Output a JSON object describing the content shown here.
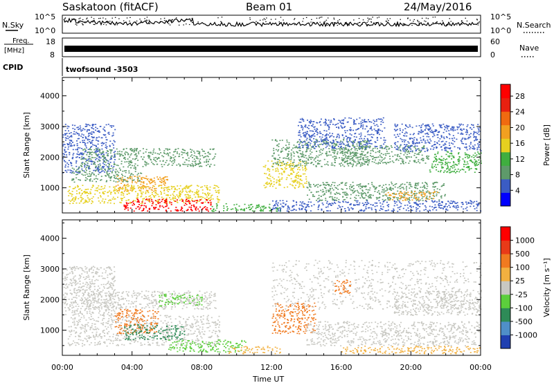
{
  "header": {
    "station": "Saskatoon (fitACF)",
    "beam": "Beam 01",
    "date": "24/May/2016"
  },
  "strips": {
    "nsky_label": "N.Sky",
    "nsearch_label": "N.Search",
    "noise_ticks": [
      "10^5",
      "10^0"
    ],
    "freq_label": "Freq.",
    "freq_unit": "[MHz]",
    "freq_ticks": [
      "18",
      "8"
    ],
    "nave_label": "Nave",
    "nave_ticks": [
      "60",
      "0"
    ],
    "cpid_label": "CPID",
    "cpid_value": "twofsound -3503"
  },
  "chart_data": [
    {
      "type": "heatmap",
      "name": "power",
      "ylabel": "Slant Range [km]",
      "xlabel": "",
      "x_ticks": [
        "00:00",
        "04:00",
        "08:00",
        "12:00",
        "16:00",
        "20:00",
        "00:00"
      ],
      "x_range_hours": [
        0,
        24
      ],
      "y_range": [
        180,
        4600
      ],
      "y_ticks": [
        1000,
        2000,
        3000,
        4000
      ],
      "colorbar": {
        "label": "Power [dB]",
        "ticks": [
          4,
          8,
          12,
          16,
          20,
          24,
          28
        ],
        "range": [
          0,
          31
        ],
        "colors": [
          "#0000ff",
          "#3b5cc4",
          "#5e9a6a",
          "#3fae3f",
          "#e6d020",
          "#f2a020",
          "#f06a10",
          "#e82010",
          "#ff0000"
        ]
      },
      "regions": [
        {
          "t0": 0.0,
          "t1": 3.0,
          "r0": 1500,
          "r1": 3100,
          "level": 6
        },
        {
          "t0": 1.0,
          "t1": 8.8,
          "r0": 1700,
          "r1": 2300,
          "level": 10
        },
        {
          "t0": 0.5,
          "t1": 4.5,
          "r0": 1200,
          "r1": 1700,
          "level": 8
        },
        {
          "t0": 3.0,
          "t1": 6.0,
          "r0": 900,
          "r1": 1400,
          "level": 20
        },
        {
          "t0": 0.3,
          "t1": 9.0,
          "r0": 500,
          "r1": 1100,
          "level": 14
        },
        {
          "t0": 3.5,
          "t1": 8.5,
          "r0": 250,
          "r1": 650,
          "level": 29
        },
        {
          "t0": 8.5,
          "t1": 12.5,
          "r0": 250,
          "r1": 500,
          "level": 12
        },
        {
          "t0": 11.5,
          "t1": 14.0,
          "r0": 1000,
          "r1": 1900,
          "level": 16
        },
        {
          "t0": 12.0,
          "t1": 17.5,
          "r0": 1700,
          "r1": 2600,
          "level": 8
        },
        {
          "t0": 13.5,
          "t1": 18.5,
          "r0": 2300,
          "r1": 3300,
          "level": 6
        },
        {
          "t0": 16.0,
          "t1": 21.0,
          "r0": 1800,
          "r1": 2400,
          "level": 10
        },
        {
          "t0": 19.0,
          "t1": 24.0,
          "r0": 2200,
          "r1": 3100,
          "level": 5
        },
        {
          "t0": 21.0,
          "t1": 24.0,
          "r0": 1500,
          "r1": 2200,
          "level": 12
        },
        {
          "t0": 14.0,
          "t1": 22.0,
          "r0": 600,
          "r1": 1200,
          "level": 8
        },
        {
          "t0": 18.5,
          "t1": 21.5,
          "r0": 600,
          "r1": 900,
          "level": 20
        },
        {
          "t0": 12.0,
          "t1": 24.0,
          "r0": 250,
          "r1": 600,
          "level": 5
        }
      ]
    },
    {
      "type": "heatmap",
      "name": "velocity",
      "ylabel": "Slant Range [km]",
      "xlabel": "Time UT",
      "x_ticks": [
        "00:00",
        "04:00",
        "08:00",
        "12:00",
        "16:00",
        "20:00",
        "00:00"
      ],
      "x_range_hours": [
        0,
        24
      ],
      "y_range": [
        180,
        4600
      ],
      "y_ticks": [
        1000,
        2000,
        3000,
        4000
      ],
      "colorbar": {
        "label": "Velocity [m s^-1]",
        "ticks": [
          "1000",
          "500",
          "100",
          "25",
          "-25",
          "-100",
          "-500",
          "-1000"
        ],
        "colors": [
          "#2040b0",
          "#4f8fc8",
          "#2e8b57",
          "#5ccf3c",
          "#c8c8c2",
          "#f2b040",
          "#f07a20",
          "#e83a18",
          "#ff0000"
        ]
      },
      "regions": [
        {
          "t0": 0.0,
          "t1": 3.0,
          "r0": 1500,
          "r1": 3100,
          "cls": 4
        },
        {
          "t0": 1.0,
          "t1": 8.8,
          "r0": 1700,
          "r1": 2300,
          "cls": 4
        },
        {
          "t0": 0.3,
          "t1": 9.0,
          "r0": 500,
          "r1": 1500,
          "cls": 4
        },
        {
          "t0": 3.0,
          "t1": 5.5,
          "r0": 900,
          "r1": 1700,
          "cls": 6
        },
        {
          "t0": 5.5,
          "t1": 8.0,
          "r0": 1800,
          "r1": 2200,
          "cls": 3
        },
        {
          "t0": 3.5,
          "t1": 7.0,
          "r0": 700,
          "r1": 1200,
          "cls": 2
        },
        {
          "t0": 6.0,
          "t1": 10.5,
          "r0": 300,
          "r1": 700,
          "cls": 3
        },
        {
          "t0": 9.5,
          "t1": 12.5,
          "r0": 250,
          "r1": 500,
          "cls": 5
        },
        {
          "t0": 12.0,
          "t1": 14.5,
          "r0": 900,
          "r1": 1900,
          "cls": 6
        },
        {
          "t0": 12.0,
          "t1": 24.0,
          "r0": 1700,
          "r1": 3300,
          "cls": 4
        },
        {
          "t0": 15.5,
          "t1": 16.5,
          "r0": 2200,
          "r1": 2700,
          "cls": 6
        },
        {
          "t0": 14.0,
          "t1": 24.0,
          "r0": 500,
          "r1": 1300,
          "cls": 4
        },
        {
          "t0": 16.0,
          "t1": 24.0,
          "r0": 250,
          "r1": 500,
          "cls": 5
        },
        {
          "t0": 19.0,
          "t1": 24.0,
          "r0": 1500,
          "r1": 2300,
          "cls": 4
        }
      ]
    }
  ]
}
